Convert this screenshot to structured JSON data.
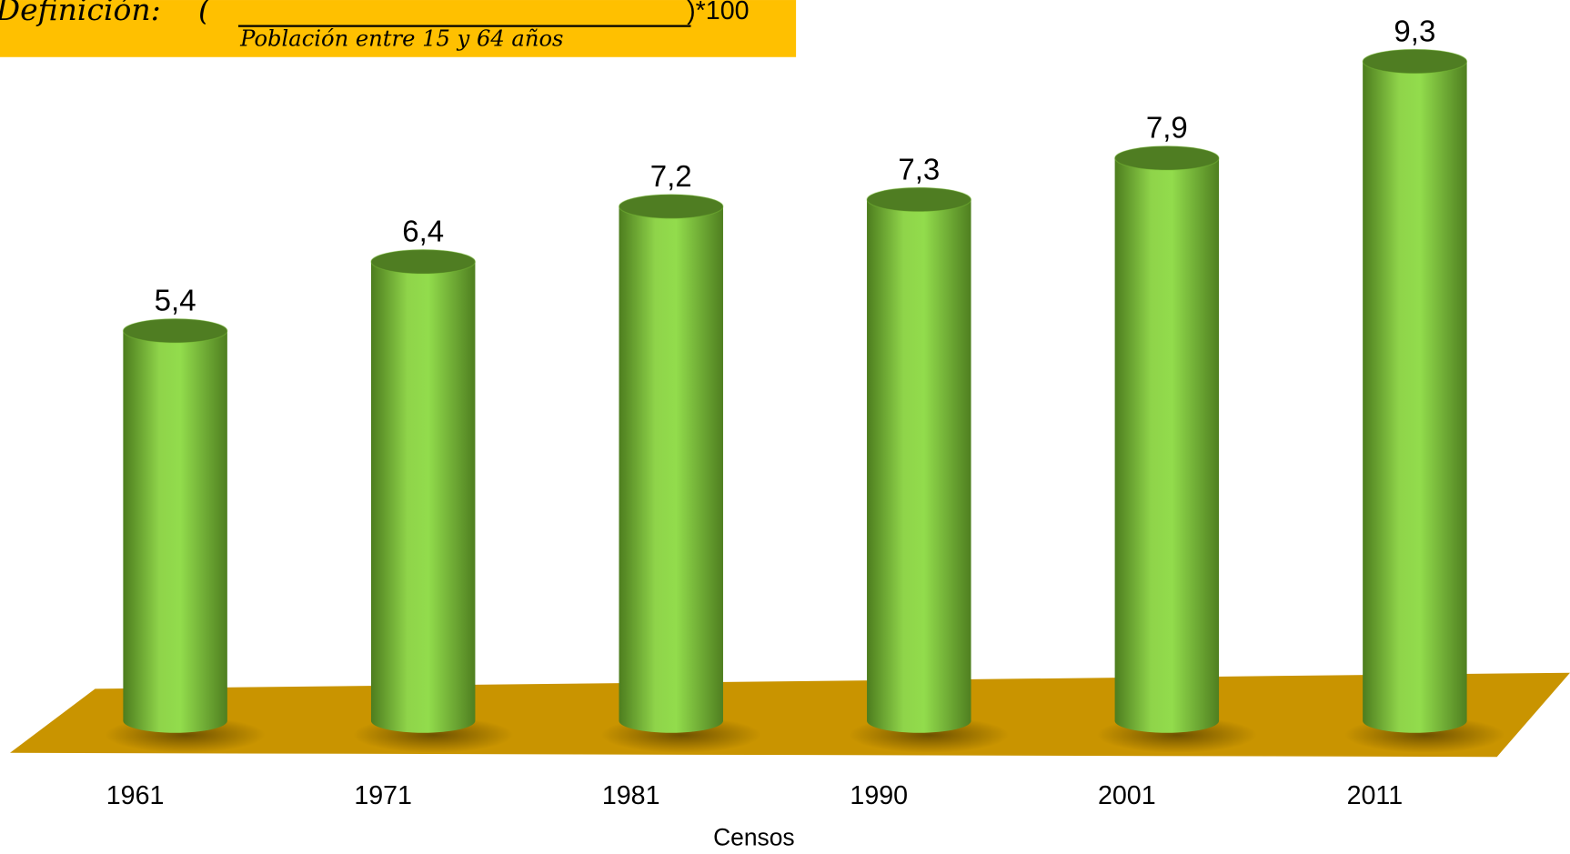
{
  "chart_data": {
    "type": "bar",
    "definition": {
      "label": "Definición:",
      "open": "(",
      "denominator": "Población entre 15 y 64 años",
      "close": ")*100"
    },
    "x_label": "Censos",
    "categories": [
      "1961",
      "1971",
      "1981",
      "1990",
      "2001",
      "2011"
    ],
    "values": [
      5.4,
      6.4,
      7.2,
      7.3,
      7.9,
      9.3
    ],
    "value_labels": [
      "5,4",
      "6,4",
      "7,2",
      "7,3",
      "7,9",
      "9,3"
    ],
    "color": "#7cc13a",
    "floor_color": "#c99400"
  }
}
